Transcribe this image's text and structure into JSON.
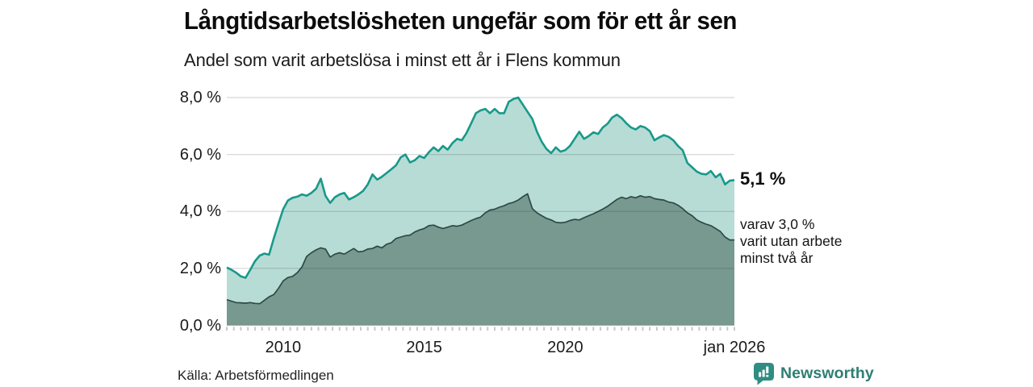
{
  "header": {
    "title": "Långtidsarbetslösheten ungefär som för ett år sen",
    "subtitle": "Andel som varit arbetslösa i minst ett år i Flens kommun"
  },
  "annotations": {
    "latest_total": "5,1 %",
    "latest_subset_lines": [
      "varav 3,0 %",
      "varit utan arbete",
      "minst två år"
    ]
  },
  "footer": {
    "source": "Källa: Arbetsförmedlingen",
    "brand_name": "Newsworthy",
    "brand_color": "#2f7e74",
    "brand_icon": "bar-chart-speech-bubble-icon"
  },
  "chart_data": {
    "type": "area",
    "x_start": "2008-01",
    "x_step_months": 2,
    "x_end": "2026-01",
    "ylim": [
      0,
      8
    ],
    "grid": true,
    "legend": "none",
    "y_ticks": [
      {
        "value": 8,
        "label": "8,0 %"
      },
      {
        "value": 6,
        "label": "6,0 %"
      },
      {
        "value": 4,
        "label": "4,0 %"
      },
      {
        "value": 2,
        "label": "2,0 %"
      },
      {
        "value": 0,
        "label": "0,0 %"
      }
    ],
    "x_ticks": [
      {
        "month_index": 24,
        "label": "2010"
      },
      {
        "month_index": 84,
        "label": "2015"
      },
      {
        "month_index": 144,
        "label": "2020"
      },
      {
        "month_index": 216,
        "label": "jan 2026"
      }
    ],
    "minor_tick_every_months": 3,
    "series": [
      {
        "name": "Arbetslösa minst ett år",
        "line_color": "#18998a",
        "fill_color": "#b7dcd5",
        "line_width": 2.6,
        "end_value_label": "5,1 %",
        "values": [
          2.03,
          1.95,
          1.85,
          1.72,
          1.67,
          1.95,
          2.25,
          2.45,
          2.52,
          2.48,
          3.05,
          3.58,
          4.08,
          4.38,
          4.48,
          4.52,
          4.6,
          4.55,
          4.65,
          4.8,
          5.15,
          4.55,
          4.3,
          4.5,
          4.6,
          4.65,
          4.42,
          4.5,
          4.6,
          4.72,
          4.95,
          5.3,
          5.12,
          5.22,
          5.35,
          5.48,
          5.62,
          5.9,
          6.0,
          5.72,
          5.8,
          5.95,
          5.88,
          6.08,
          6.25,
          6.12,
          6.3,
          6.17,
          6.4,
          6.55,
          6.5,
          6.75,
          7.1,
          7.45,
          7.55,
          7.6,
          7.45,
          7.6,
          7.45,
          7.45,
          7.85,
          7.95,
          8.0,
          7.75,
          7.5,
          7.25,
          6.8,
          6.45,
          6.2,
          6.05,
          6.25,
          6.1,
          6.15,
          6.3,
          6.55,
          6.8,
          6.55,
          6.65,
          6.78,
          6.72,
          6.95,
          7.08,
          7.3,
          7.4,
          7.28,
          7.1,
          6.95,
          6.88,
          7.0,
          6.95,
          6.82,
          6.5,
          6.6,
          6.68,
          6.62,
          6.5,
          6.3,
          6.15,
          5.7,
          5.55,
          5.4,
          5.32,
          5.3,
          5.42,
          5.2,
          5.32,
          4.95,
          5.08,
          5.1
        ]
      },
      {
        "name": "Arbetslösa minst två år",
        "line_color": "#2d4a45",
        "fill_color": "#78998f",
        "line_width": 1.7,
        "end_value_label": "3,0 %",
        "values": [
          0.9,
          0.85,
          0.8,
          0.79,
          0.78,
          0.8,
          0.77,
          0.76,
          0.88,
          1.0,
          1.08,
          1.3,
          1.56,
          1.68,
          1.72,
          1.85,
          2.05,
          2.42,
          2.55,
          2.65,
          2.72,
          2.68,
          2.4,
          2.5,
          2.55,
          2.5,
          2.6,
          2.7,
          2.58,
          2.6,
          2.68,
          2.7,
          2.78,
          2.72,
          2.85,
          2.9,
          3.05,
          3.1,
          3.15,
          3.17,
          3.28,
          3.35,
          3.4,
          3.5,
          3.52,
          3.45,
          3.4,
          3.45,
          3.5,
          3.48,
          3.52,
          3.6,
          3.68,
          3.75,
          3.8,
          3.95,
          4.05,
          4.08,
          4.15,
          4.2,
          4.28,
          4.32,
          4.4,
          4.52,
          4.62,
          4.1,
          3.95,
          3.85,
          3.76,
          3.7,
          3.62,
          3.6,
          3.62,
          3.68,
          3.72,
          3.7,
          3.78,
          3.85,
          3.92,
          4.0,
          4.08,
          4.18,
          4.3,
          4.42,
          4.5,
          4.45,
          4.52,
          4.48,
          4.55,
          4.5,
          4.52,
          4.45,
          4.42,
          4.4,
          4.33,
          4.3,
          4.22,
          4.1,
          3.95,
          3.85,
          3.7,
          3.62,
          3.55,
          3.5,
          3.4,
          3.3,
          3.1,
          3.0,
          3.0
        ]
      }
    ]
  }
}
